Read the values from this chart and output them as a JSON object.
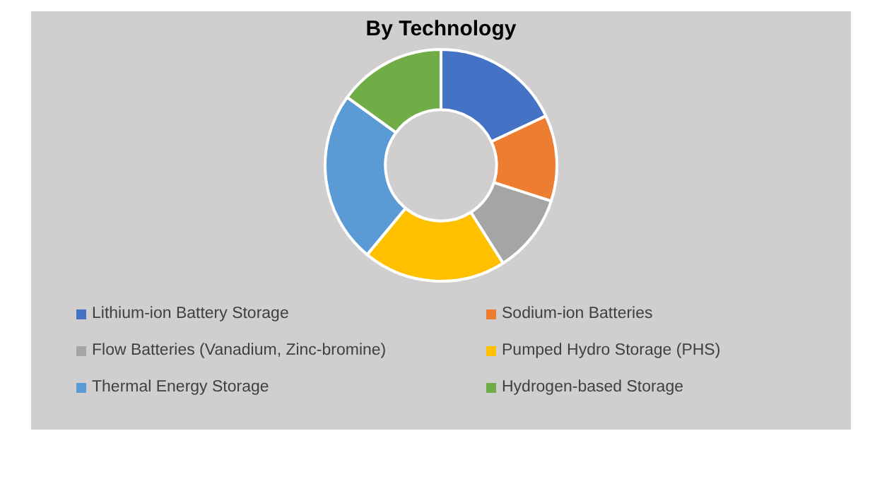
{
  "chart_data": {
    "type": "donut",
    "title": "By Technology",
    "legend": "bottom",
    "categories": [
      "Lithium-ion Battery Storage",
      "Sodium-ion Batteries",
      "Flow Batteries (Vanadium, Zinc-bromine)",
      "Pumped Hydro Storage (PHS)",
      "Thermal Energy Storage",
      "Hydrogen-based Storage"
    ],
    "values": [
      18,
      12,
      11,
      20,
      24,
      15
    ],
    "colors": [
      "#4472c4",
      "#ed7d31",
      "#a5a5a5",
      "#ffc000",
      "#5b9bd5",
      "#70ad47"
    ]
  }
}
